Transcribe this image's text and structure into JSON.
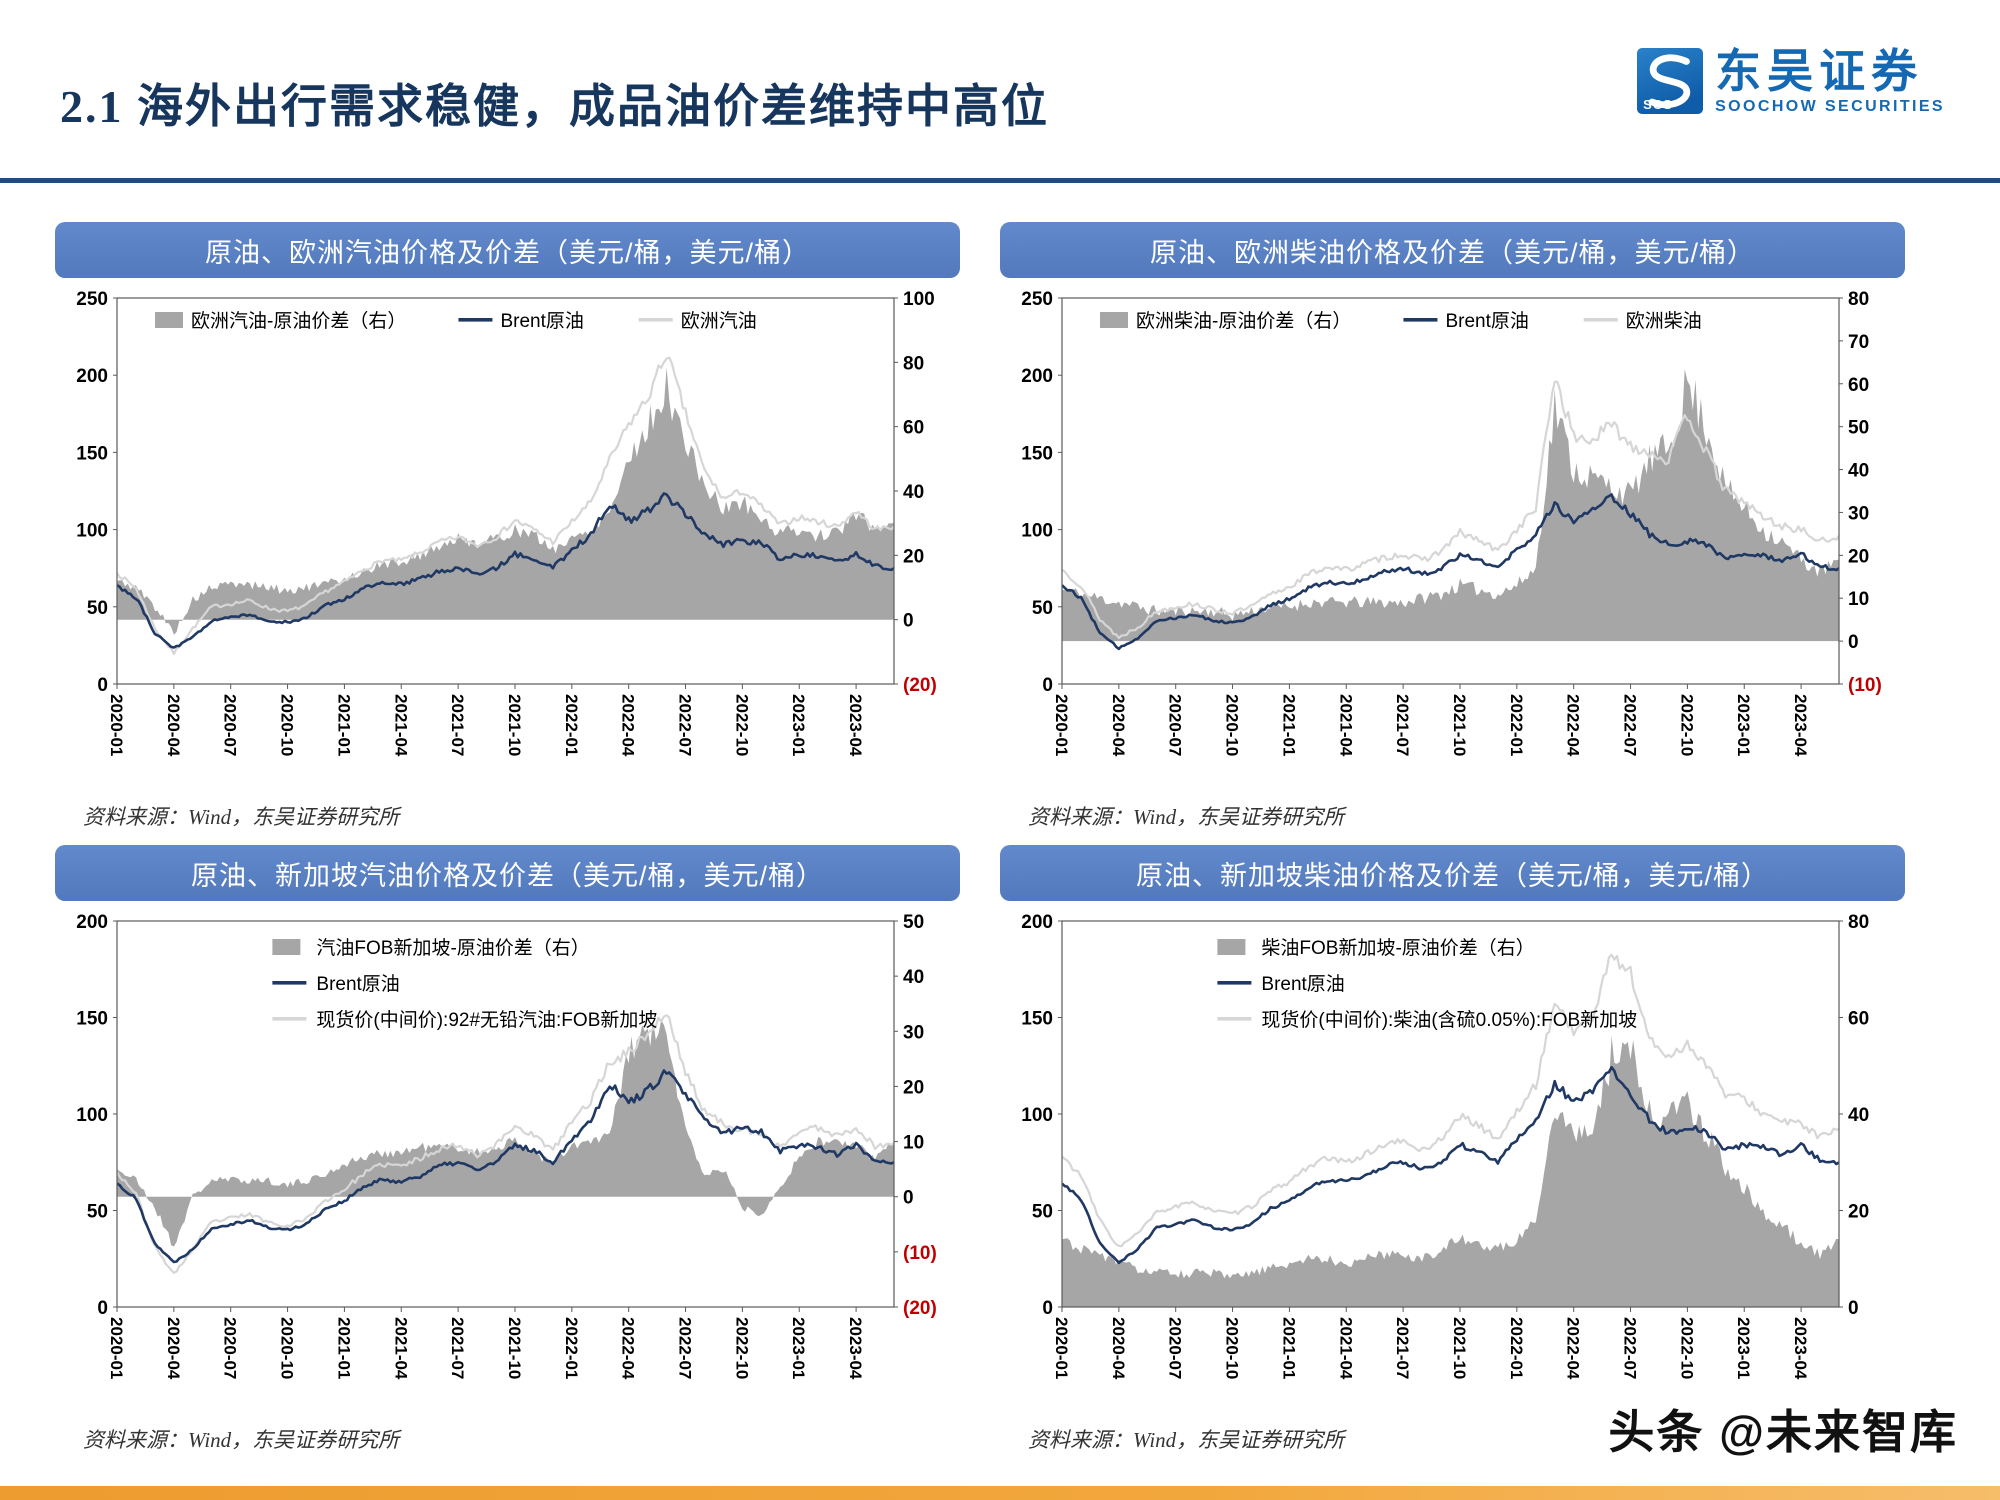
{
  "header": {
    "title": "2.1 海外出行需求稳健，成品油价差维持中高位"
  },
  "logo": {
    "abbr": "SCS",
    "name": "东吴证券",
    "subtitle": "SOOCHOW SECURITIES"
  },
  "footer": {
    "watermark": "头条 @未来智库"
  },
  "months": [
    "2020-01",
    "2020-02",
    "2020-03",
    "2020-04",
    "2020-05",
    "2020-06",
    "2020-07",
    "2020-08",
    "2020-09",
    "2020-10",
    "2020-11",
    "2020-12",
    "2021-01",
    "2021-02",
    "2021-03",
    "2021-04",
    "2021-05",
    "2021-06",
    "2021-07",
    "2021-08",
    "2021-09",
    "2021-10",
    "2021-11",
    "2021-12",
    "2022-01",
    "2022-02",
    "2022-03",
    "2022-04",
    "2022-05",
    "2022-06",
    "2022-07",
    "2022-08",
    "2022-09",
    "2022-10",
    "2022-11",
    "2022-12",
    "2023-01",
    "2023-02",
    "2023-03",
    "2023-04",
    "2023-05",
    "2023-06"
  ],
  "chart_data": [
    {
      "type": "line+area",
      "title": "原油、欧洲汽油价格及价差（美元/桶，美元/桶）",
      "source": "资料来源：Wind，东吴证券研究所",
      "legend_layout": "row",
      "x_tick_step": 3,
      "left_ticks": [
        "250",
        "200",
        "150",
        "100",
        "50",
        "0"
      ],
      "right_ticks": [
        "100",
        "80",
        "60",
        "40",
        "20",
        "0",
        "(20)"
      ],
      "series": [
        {
          "name": "欧洲汽油-原油价差（右）",
          "type": "area",
          "axis": "right",
          "color": "#a6a6a6",
          "z": 0,
          "seed": 5,
          "noise": 0.055,
          "values": [
            12,
            10,
            4,
            -4,
            6,
            10,
            11,
            11,
            10,
            9,
            10,
            11,
            13,
            15,
            17,
            18,
            20,
            23,
            25,
            24,
            25,
            28,
            26,
            22,
            25,
            28,
            34,
            50,
            60,
            72,
            55,
            42,
            34,
            37,
            31,
            27,
            28,
            26,
            27,
            33,
            28,
            30
          ]
        },
        {
          "name": "Brent原油",
          "type": "line",
          "axis": "left",
          "color": "#1f3864",
          "width": 2.6,
          "z": 2,
          "seed": 6,
          "noise": 0.012,
          "values": [
            64,
            56,
            33,
            23,
            30,
            41,
            43,
            45,
            41,
            40,
            43,
            51,
            55,
            62,
            66,
            65,
            68,
            73,
            75,
            71,
            75,
            84,
            81,
            75,
            87,
            97,
            116,
            106,
            112,
            122,
            110,
            97,
            90,
            93,
            91,
            81,
            84,
            83,
            79,
            84,
            76,
            75
          ]
        },
        {
          "name": "欧洲汽油",
          "type": "line",
          "axis": "left",
          "color": "#d6d6d6",
          "width": 2.2,
          "z": 1,
          "seed": 7,
          "noise": 0.02,
          "values": [
            72,
            62,
            36,
            20,
            36,
            50,
            52,
            54,
            49,
            47,
            51,
            60,
            66,
            74,
            80,
            80,
            85,
            92,
            95,
            90,
            95,
            106,
            100,
            92,
            105,
            118,
            145,
            168,
            185,
            215,
            175,
            138,
            120,
            125,
            115,
            103,
            108,
            105,
            102,
            112,
            100,
            102
          ]
        }
      ]
    },
    {
      "type": "line+area",
      "title": "原油、欧洲柴油价格及价差（美元/桶，美元/桶）",
      "source": "资料来源：Wind，东吴证券研究所",
      "legend_layout": "row",
      "x_tick_step": 3,
      "left_ticks": [
        "250",
        "200",
        "150",
        "100",
        "50",
        "0"
      ],
      "right_ticks": [
        "80",
        "70",
        "60",
        "50",
        "40",
        "30",
        "20",
        "10",
        "0",
        "(10)"
      ],
      "series": [
        {
          "name": "欧洲柴油-原油价差（右）",
          "type": "area",
          "axis": "right",
          "color": "#a6a6a6",
          "z": 0,
          "seed": 11,
          "noise": 0.075,
          "values": [
            12,
            11,
            10,
            9,
            8,
            7,
            7,
            7,
            7,
            6,
            7,
            8,
            8,
            9,
            9,
            9,
            9,
            9,
            9,
            10,
            11,
            13,
            12,
            11,
            13,
            17,
            55,
            40,
            38,
            36,
            34,
            42,
            45,
            60,
            50,
            36,
            31,
            26,
            23,
            19,
            16,
            19
          ]
        },
        {
          "name": "Brent原油",
          "type": "line",
          "axis": "left",
          "color": "#1f3864",
          "width": 2.6,
          "z": 2,
          "seed": 12,
          "noise": 0.012,
          "values": [
            64,
            56,
            33,
            23,
            30,
            41,
            43,
            45,
            41,
            40,
            43,
            51,
            55,
            62,
            66,
            65,
            68,
            73,
            75,
            71,
            75,
            84,
            81,
            75,
            87,
            97,
            116,
            106,
            112,
            122,
            110,
            97,
            90,
            93,
            91,
            81,
            84,
            83,
            79,
            84,
            76,
            75
          ]
        },
        {
          "name": "欧洲柴油",
          "type": "line",
          "axis": "left",
          "color": "#d6d6d6",
          "width": 2.2,
          "z": 1,
          "seed": 13,
          "noise": 0.025,
          "values": [
            74,
            64,
            42,
            30,
            37,
            47,
            50,
            52,
            48,
            46,
            50,
            58,
            63,
            71,
            76,
            74,
            78,
            82,
            84,
            80,
            86,
            98,
            93,
            86,
            100,
            114,
            200,
            160,
            158,
            168,
            155,
            150,
            145,
            175,
            150,
            125,
            118,
            108,
            102,
            100,
            92,
            96
          ]
        }
      ]
    },
    {
      "type": "line+area",
      "title": "原油、新加坡汽油价格及价差（美元/桶，美元/桶）",
      "source": "资料来源：Wind，东吴证券研究所",
      "legend_layout": "stack",
      "x_tick_step": 3,
      "left_ticks": [
        "200",
        "150",
        "100",
        "50",
        "0"
      ],
      "right_ticks": [
        "50",
        "40",
        "30",
        "20",
        "10",
        "0",
        "(10)",
        "(20)"
      ],
      "series": [
        {
          "name": "汽油FOB新加坡-原油价差（右）",
          "type": "area",
          "axis": "right",
          "color": "#a6a6a6",
          "z": 0,
          "seed": 21,
          "noise": 0.05,
          "values": [
            5,
            3,
            -2,
            -9,
            0,
            3,
            3,
            3,
            3,
            2,
            3,
            4,
            6,
            7,
            8,
            8,
            9,
            9,
            9,
            8,
            9,
            10,
            8,
            6,
            9,
            10,
            11,
            26,
            30,
            29,
            12,
            4,
            5,
            -2,
            -3,
            2,
            7,
            10,
            10,
            9,
            7,
            10
          ]
        },
        {
          "name": "Brent原油",
          "type": "line",
          "axis": "left",
          "color": "#1f3864",
          "width": 2.6,
          "z": 2,
          "seed": 22,
          "noise": 0.012,
          "values": [
            64,
            56,
            33,
            23,
            30,
            41,
            43,
            45,
            41,
            40,
            43,
            51,
            55,
            62,
            66,
            65,
            68,
            73,
            75,
            71,
            75,
            84,
            81,
            75,
            87,
            97,
            116,
            106,
            112,
            122,
            110,
            97,
            90,
            93,
            91,
            81,
            84,
            83,
            79,
            84,
            76,
            75
          ]
        },
        {
          "name": "现货价(中间价):92#无铅汽油:FOB新加坡",
          "type": "line",
          "axis": "left",
          "color": "#d6d6d6",
          "width": 2.2,
          "z": 1,
          "seed": 23,
          "noise": 0.018,
          "values": [
            70,
            59,
            31,
            17,
            30,
            44,
            46,
            48,
            44,
            42,
            46,
            55,
            61,
            69,
            74,
            73,
            77,
            82,
            84,
            79,
            84,
            94,
            89,
            81,
            96,
            107,
            127,
            132,
            142,
            152,
            122,
            101,
            95,
            92,
            89,
            83,
            91,
            93,
            89,
            93,
            83,
            85
          ]
        }
      ]
    },
    {
      "type": "line+area",
      "title": "原油、新加坡柴油价格及价差（美元/桶，美元/桶）",
      "source": "资料来源：Wind，东吴证券研究所",
      "legend_layout": "stack",
      "x_tick_step": 3,
      "left_ticks": [
        "200",
        "150",
        "100",
        "50",
        "0"
      ],
      "right_ticks": [
        "80",
        "60",
        "40",
        "20",
        "0"
      ],
      "series": [
        {
          "name": "柴油FOB新加坡-原油价差（右）",
          "type": "area",
          "axis": "right",
          "color": "#a6a6a6",
          "z": 0,
          "seed": 31,
          "noise": 0.06,
          "values": [
            14,
            12,
            11,
            9,
            8,
            7,
            7,
            7,
            7,
            6,
            7,
            8,
            9,
            10,
            10,
            9,
            10,
            11,
            11,
            10,
            12,
            14,
            13,
            12,
            14,
            18,
            42,
            36,
            37,
            52,
            54,
            40,
            39,
            43,
            36,
            29,
            25,
            19,
            17,
            13,
            11,
            14
          ]
        },
        {
          "name": "Brent原油",
          "type": "line",
          "axis": "left",
          "color": "#1f3864",
          "width": 2.6,
          "z": 2,
          "seed": 32,
          "noise": 0.012,
          "values": [
            64,
            56,
            33,
            23,
            30,
            41,
            43,
            45,
            41,
            40,
            43,
            51,
            55,
            62,
            66,
            65,
            68,
            73,
            75,
            71,
            75,
            84,
            81,
            75,
            87,
            97,
            116,
            106,
            112,
            122,
            110,
            97,
            90,
            93,
            91,
            81,
            84,
            83,
            79,
            84,
            76,
            75
          ]
        },
        {
          "name": "现货价(中间价):柴油(含硫0.05%):FOB新加坡",
          "type": "line",
          "axis": "left",
          "color": "#d6d6d6",
          "width": 2.2,
          "z": 1,
          "seed": 33,
          "noise": 0.022,
          "values": [
            78,
            68,
            45,
            31,
            38,
            49,
            52,
            54,
            50,
            48,
            52,
            60,
            65,
            73,
            77,
            75,
            79,
            84,
            86,
            81,
            87,
            99,
            94,
            87,
            101,
            115,
            158,
            143,
            150,
            183,
            173,
            138,
            130,
            136,
            126,
            110,
            108,
            100,
            96,
            95,
            88,
            92
          ]
        }
      ]
    }
  ]
}
